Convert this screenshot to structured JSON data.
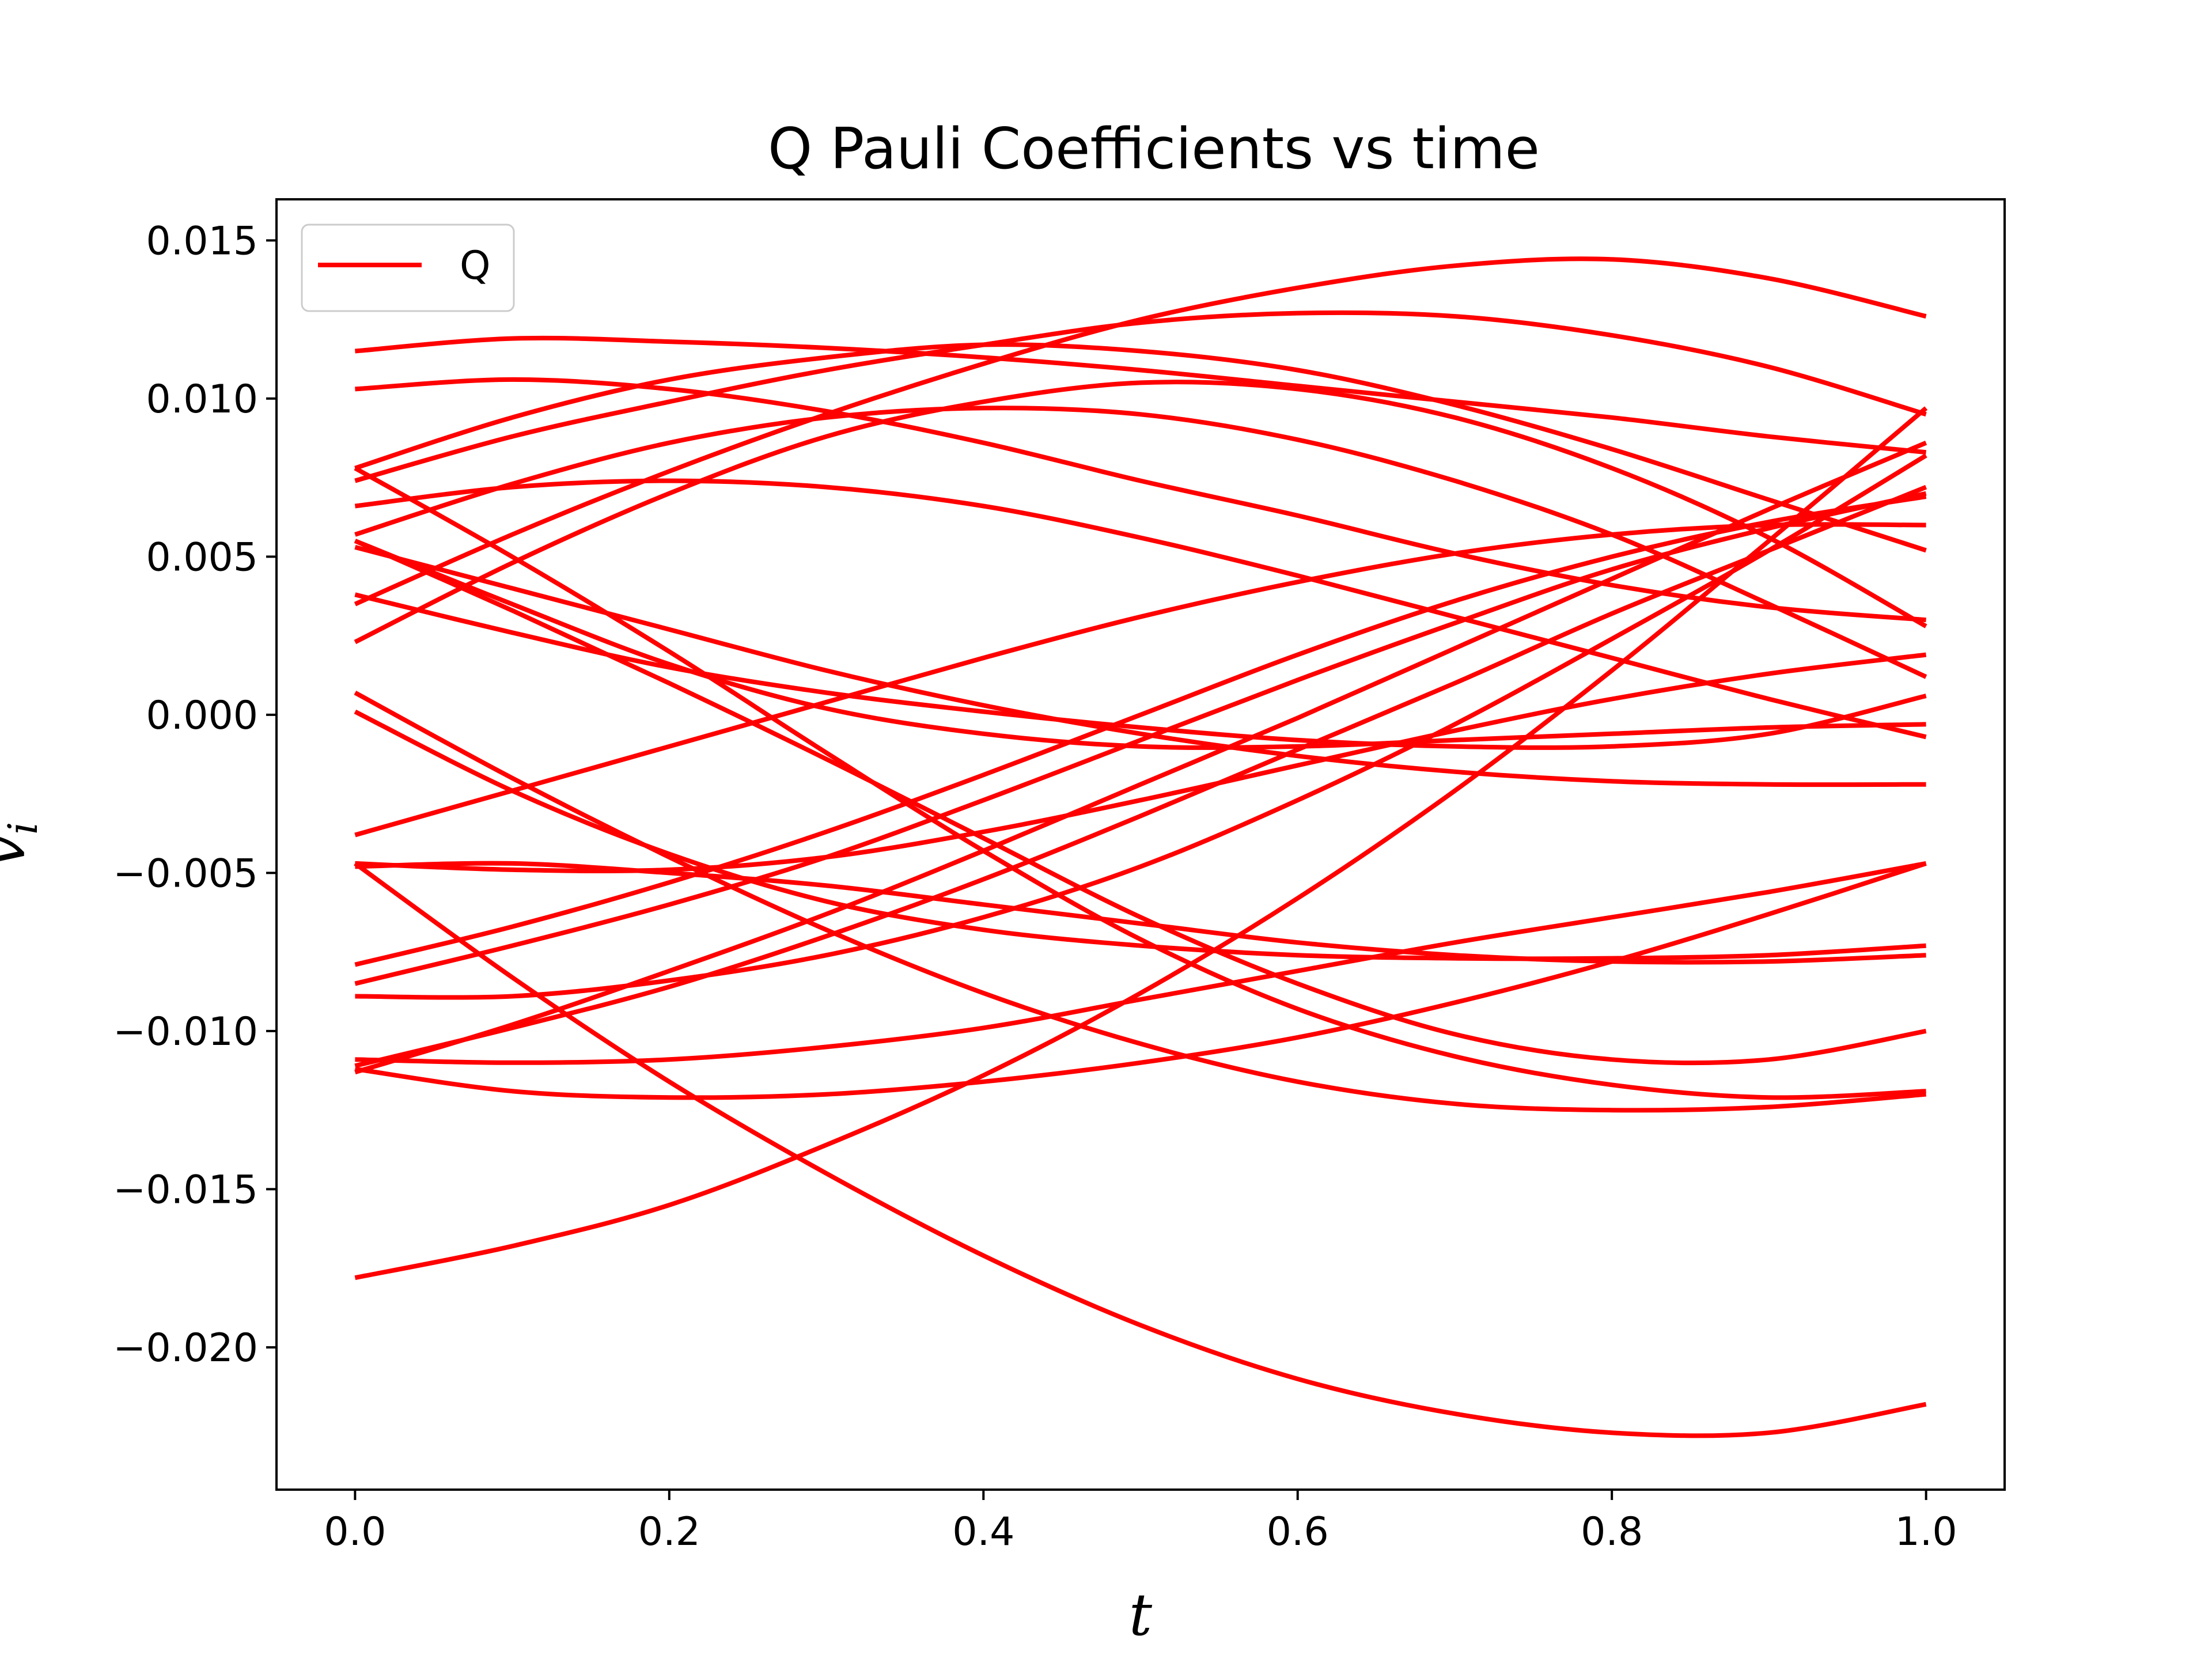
{
  "chart_data": {
    "type": "line",
    "title": "Q Pauli Coefficients vs time",
    "xlabel": "t",
    "ylabel": "v",
    "ylabel_subscript": "i",
    "xlim": [
      -0.05,
      1.05
    ],
    "ylim": [
      -0.0245,
      0.0163
    ],
    "grid": false,
    "legend": {
      "placement": "top-left",
      "entries": [
        {
          "label": "Q",
          "color": "#ff0000"
        }
      ]
    },
    "x_ticks": [
      {
        "value": 0.0,
        "label": "0.0"
      },
      {
        "value": 0.2,
        "label": "0.2"
      },
      {
        "value": 0.4,
        "label": "0.4"
      },
      {
        "value": 0.6,
        "label": "0.6"
      },
      {
        "value": 0.8,
        "label": "0.8"
      },
      {
        "value": 1.0,
        "label": "1.0"
      }
    ],
    "y_ticks": [
      {
        "value": 0.015,
        "label": "0.015"
      },
      {
        "value": 0.01,
        "label": "0.010"
      },
      {
        "value": 0.005,
        "label": "0.005"
      },
      {
        "value": 0.0,
        "label": "0.000"
      },
      {
        "value": -0.005,
        "label": "−0.005"
      },
      {
        "value": -0.01,
        "label": "−0.010"
      },
      {
        "value": -0.015,
        "label": "−0.015"
      },
      {
        "value": -0.02,
        "label": "−0.020"
      }
    ],
    "line_color": "#ff0000",
    "x": [
      0.0,
      0.1,
      0.2,
      0.3,
      0.4,
      0.5,
      0.6,
      0.7,
      0.8,
      0.9,
      1.0
    ],
    "series": [
      {
        "values": [
          0.0115,
          0.0119,
          0.0118,
          0.0116,
          0.0113,
          0.0109,
          0.0104,
          0.0099,
          0.0094,
          0.0088,
          0.0083
        ]
      },
      {
        "values": [
          0.0103,
          0.0106,
          0.0103,
          0.0096,
          0.0086,
          0.0074,
          0.0063,
          0.0051,
          0.0041,
          0.0034,
          0.003
        ]
      },
      {
        "values": [
          0.0078,
          0.0094,
          0.0106,
          0.0113,
          0.0117,
          0.0115,
          0.0109,
          0.0098,
          0.0084,
          0.0068,
          0.0052
        ]
      },
      {
        "values": [
          0.0074,
          0.0088,
          0.0099,
          0.0109,
          0.0117,
          0.0124,
          0.0127,
          0.0126,
          0.012,
          0.011,
          0.0095
        ]
      },
      {
        "values": [
          0.0066,
          0.0072,
          0.0074,
          0.0072,
          0.0066,
          0.0056,
          0.0044,
          0.0031,
          0.0018,
          0.0005,
          -0.0007
        ]
      },
      {
        "values": [
          0.0057,
          0.0073,
          0.0086,
          0.0094,
          0.0097,
          0.0095,
          0.0087,
          0.0074,
          0.0057,
          0.0035,
          0.0012
        ]
      },
      {
        "values": [
          0.0055,
          0.0035,
          0.0016,
          0.0002,
          -0.0006,
          -0.001,
          -0.001,
          -0.0008,
          -0.0006,
          -0.0004,
          -0.0003
        ]
      },
      {
        "values": [
          0.0053,
          0.004,
          0.0027,
          0.0014,
          0.0003,
          -0.0006,
          -0.0013,
          -0.0018,
          -0.0021,
          -0.0022,
          -0.0022
        ]
      },
      {
        "values": [
          0.0038,
          0.0026,
          0.0015,
          0.0007,
          0.0001,
          -0.0004,
          -0.0008,
          -0.001,
          -0.001,
          -0.0006,
          0.0006
        ]
      },
      {
        "values": [
          0.0035,
          0.0057,
          0.0077,
          0.0095,
          0.0111,
          0.0125,
          0.0135,
          0.0142,
          0.0144,
          0.0138,
          0.0126
        ]
      },
      {
        "values": [
          0.0023,
          0.0048,
          0.007,
          0.0088,
          0.0099,
          0.0105,
          0.0103,
          0.0094,
          0.0078,
          0.0056,
          0.0028
        ]
      },
      {
        "values": [
          0.0078,
          0.005,
          0.002,
          -0.0012,
          -0.0043,
          -0.0071,
          -0.0093,
          -0.0108,
          -0.0117,
          -0.0121,
          -0.0119
        ]
      },
      {
        "values": [
          0.0055,
          0.0033,
          0.001,
          -0.0014,
          -0.0039,
          -0.0064,
          -0.0085,
          -0.0101,
          -0.0109,
          -0.0109,
          -0.01
        ]
      },
      {
        "values": [
          0.0007,
          -0.002,
          -0.0045,
          -0.0068,
          -0.0088,
          -0.0104,
          -0.0116,
          -0.0123,
          -0.0125,
          -0.0124,
          -0.012
        ]
      },
      {
        "values": [
          0.0001,
          -0.0024,
          -0.0044,
          -0.0059,
          -0.0068,
          -0.0073,
          -0.0076,
          -0.0077,
          -0.0077,
          -0.0076,
          -0.0073
        ]
      },
      {
        "values": [
          -0.0038,
          -0.0024,
          -0.001,
          0.0004,
          0.0018,
          0.0031,
          0.0042,
          0.0051,
          0.0057,
          0.006,
          0.006
        ]
      },
      {
        "values": [
          -0.0048,
          -0.0047,
          -0.005,
          -0.0054,
          -0.006,
          -0.0066,
          -0.0072,
          -0.0076,
          -0.0078,
          -0.0078,
          -0.0076
        ]
      },
      {
        "values": [
          -0.0047,
          -0.0049,
          -0.0049,
          -0.0045,
          -0.0037,
          -0.0027,
          -0.0016,
          -0.0005,
          0.0005,
          0.0013,
          0.0019
        ]
      },
      {
        "values": [
          -0.0047,
          -0.0083,
          -0.0116,
          -0.0145,
          -0.0171,
          -0.0193,
          -0.021,
          -0.0221,
          -0.0227,
          -0.0227,
          -0.0218
        ]
      },
      {
        "values": [
          -0.0079,
          -0.0067,
          -0.0053,
          -0.0037,
          -0.0019,
          0.0,
          0.0019,
          0.0036,
          0.005,
          0.0061,
          0.0069
        ]
      },
      {
        "values": [
          -0.0085,
          -0.0073,
          -0.006,
          -0.0045,
          -0.0027,
          -0.0008,
          0.0011,
          0.0029,
          0.0046,
          0.0059,
          0.007
        ]
      },
      {
        "values": [
          -0.0089,
          -0.0089,
          -0.0084,
          -0.0076,
          -0.0064,
          -0.0048,
          -0.0027,
          -0.0003,
          0.0024,
          0.0052,
          0.0082
        ]
      },
      {
        "values": [
          -0.0109,
          -0.011,
          -0.0109,
          -0.0105,
          -0.0099,
          -0.009,
          -0.0081,
          -0.0072,
          -0.0064,
          -0.0056,
          -0.0047
        ]
      },
      {
        "values": [
          -0.0111,
          -0.0099,
          -0.0086,
          -0.007,
          -0.0052,
          -0.0032,
          -0.0011,
          0.001,
          0.0032,
          0.0052,
          0.0072
        ]
      },
      {
        "values": [
          -0.0113,
          -0.0098,
          -0.0081,
          -0.0063,
          -0.0043,
          -0.0022,
          -0.0001,
          0.0021,
          0.0043,
          0.0065,
          0.0086
        ]
      },
      {
        "values": [
          -0.0112,
          -0.0119,
          -0.0121,
          -0.012,
          -0.0116,
          -0.011,
          -0.0102,
          -0.0091,
          -0.0078,
          -0.0063,
          -0.0047
        ]
      },
      {
        "values": [
          -0.0178,
          -0.0168,
          -0.0155,
          -0.0136,
          -0.0114,
          -0.0088,
          -0.0058,
          -0.0024,
          0.0014,
          0.0055,
          0.0097
        ]
      }
    ]
  }
}
